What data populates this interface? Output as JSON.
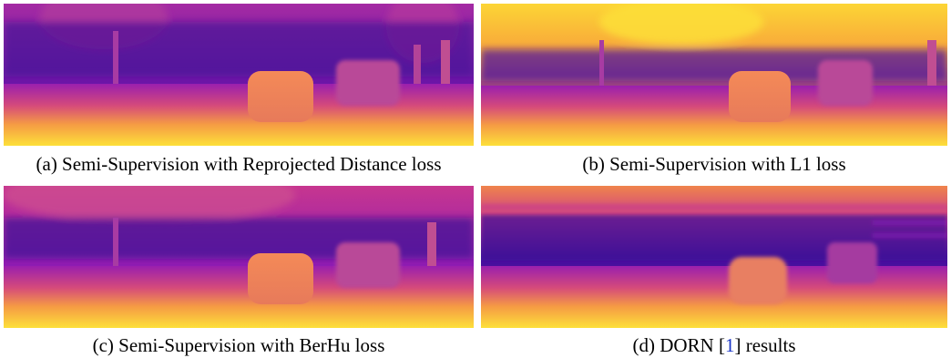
{
  "figure": {
    "panels": [
      {
        "caption": "(a) Semi-Supervision with Reprojected Distance loss",
        "colormap": "plasma",
        "content": "depth-map"
      },
      {
        "caption": "(b) Semi-Supervision with L1 loss",
        "colormap": "plasma",
        "content": "depth-map"
      },
      {
        "caption": "(c) Semi-Supervision with BerHu loss",
        "colormap": "plasma",
        "content": "depth-map"
      },
      {
        "caption_prefix": "(d) DORN [",
        "caption_ref": "1",
        "caption_suffix": "] results",
        "colormap": "plasma",
        "content": "depth-map"
      }
    ],
    "colors": {
      "plasma_dark": "#2b0b8a",
      "plasma_purple": "#8d1ab5",
      "plasma_magenta": "#c7368f",
      "plasma_orange": "#f0844b",
      "plasma_yellow": "#fcd535",
      "citation_link": "#1a35c8"
    }
  }
}
